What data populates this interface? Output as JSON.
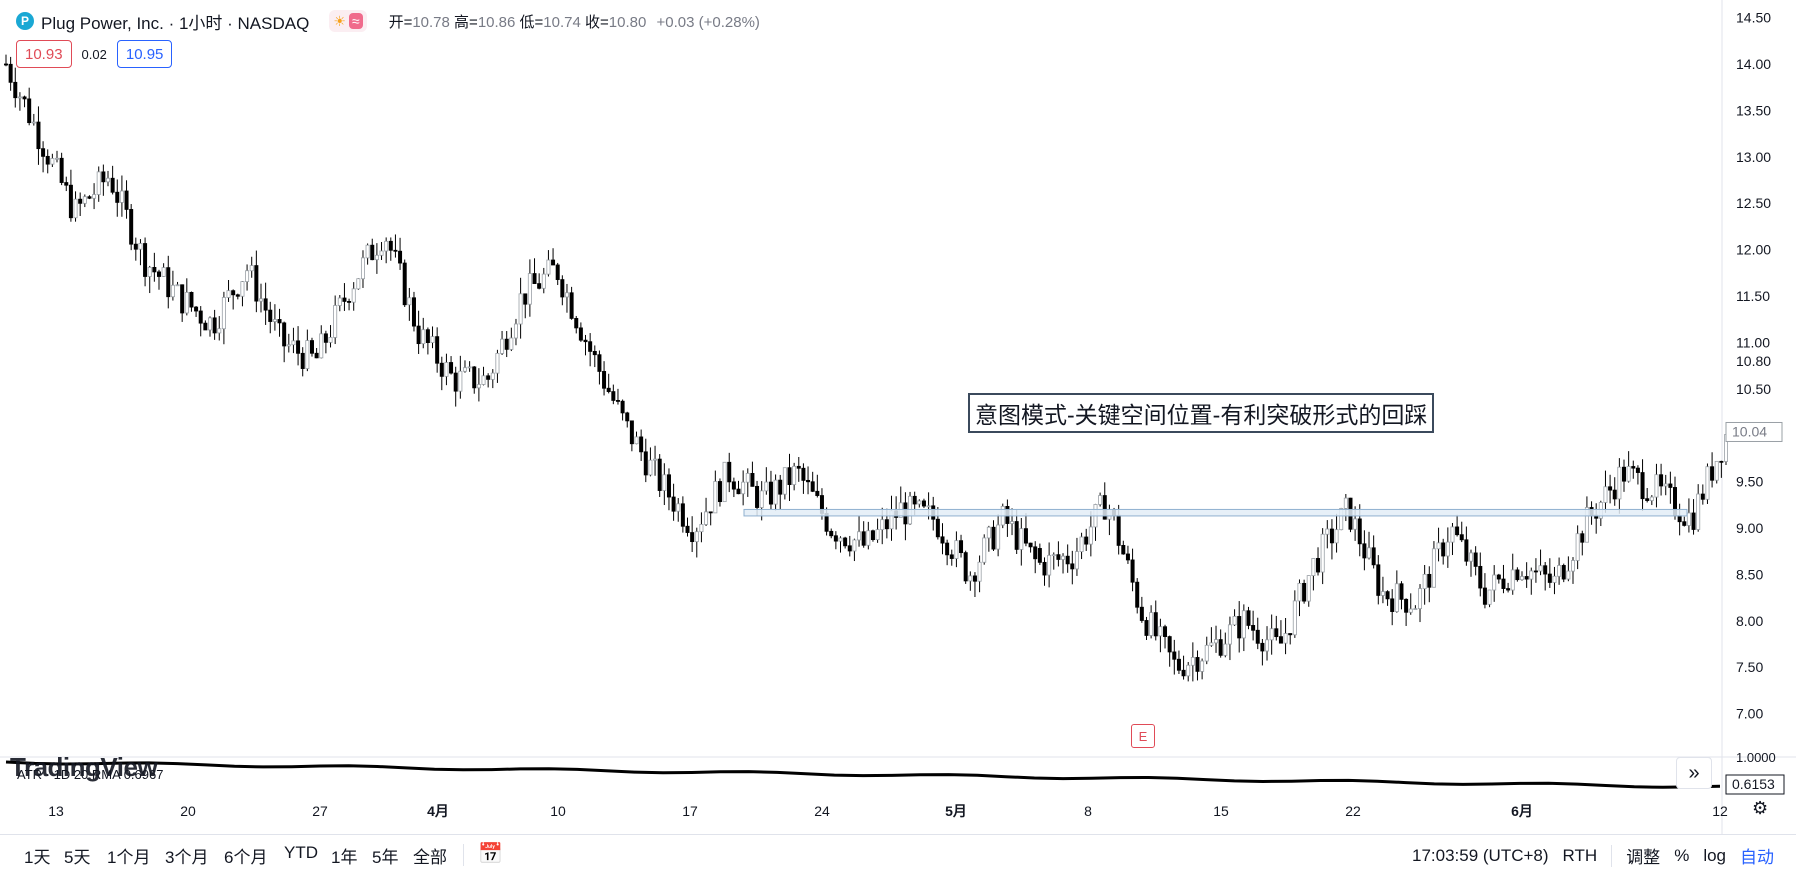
{
  "header": {
    "logo_glyph": "P",
    "title": "Plug Power, Inc. · 1小时 · NASDAQ",
    "market_status_icons": [
      "sun-icon",
      "wave-icon"
    ],
    "sun_glyph": "☀",
    "wave_glyph": "≈",
    "ohlc": {
      "open_label": "开=",
      "open": "10.78",
      "high_label": "高=",
      "high": "10.86",
      "low_label": "低=",
      "low": "10.74",
      "close_label": "收=",
      "close": "10.80",
      "change": "+0.03 (+0.28%)"
    }
  },
  "quote": {
    "sell": "10.93",
    "spread": "0.02",
    "buy": "10.95"
  },
  "annotation_text": "意图模式-关键空间位置-有利突破形式的回踩",
  "earnings_marker": "E",
  "indicator": {
    "label": "ATR · 1D 20 RMA",
    "value": "0.6967",
    "axis_value": "0.6153",
    "axis_top": "1.0000"
  },
  "watermark": "TradingView",
  "ranges": [
    "1天",
    "5天",
    "1个月",
    "3个月",
    "6个月",
    "YTD",
    "1年",
    "5年",
    "全部"
  ],
  "bottom_right": {
    "time": "17:03:59 (UTC+8)",
    "session": "RTH",
    "adjust": "调整",
    "percent": "%",
    "log": "log",
    "auto": "自动"
  },
  "colors": {
    "up": "#ffffff",
    "down": "#000000",
    "wick": "#000000",
    "zone_fill": "#e3edf7",
    "zone_border": "#8fb0cf",
    "last_price": "#787b86"
  },
  "chart_data": {
    "type": "candlestick",
    "title": "Plug Power, Inc. · 1小时 · NASDAQ",
    "ylim": [
      6.85,
      14.6
    ],
    "y_ticks": [
      "14.50",
      "14.00",
      "13.50",
      "13.00",
      "12.50",
      "12.00",
      "11.50",
      "11.00",
      "10.80",
      "10.50",
      "10.00",
      "9.50",
      "9.00",
      "8.50",
      "8.00",
      "7.50",
      "7.00"
    ],
    "x_ticks": [
      "13",
      "20",
      "27",
      "4月",
      "10",
      "17",
      "24",
      "5月",
      "8",
      "15",
      "22",
      "6月",
      "12"
    ],
    "last_price_label": "10.04",
    "last_price": 10.04,
    "anchor_prices": [
      14.0,
      13.2,
      12.4,
      12.8,
      11.9,
      11.5,
      11.2,
      11.8,
      11.0,
      10.8,
      11.6,
      12.2,
      11.1,
      10.6,
      10.6,
      11.5,
      11.8,
      10.9,
      10.1,
      9.5,
      9.0,
      9.6,
      9.3,
      9.6,
      9.0,
      8.8,
      9.2,
      9.1,
      8.5,
      9.1,
      8.6,
      8.7,
      9.3,
      8.1,
      7.5,
      7.7,
      8.0,
      7.7,
      8.6,
      9.2,
      8.3,
      8.2,
      9.0,
      8.3,
      8.6,
      8.4,
      9.1,
      9.6,
      9.4,
      9.1,
      10.0
    ],
    "resistance_zone": {
      "low": 9.13,
      "high": 9.2
    },
    "gap_after_index": 30
  }
}
